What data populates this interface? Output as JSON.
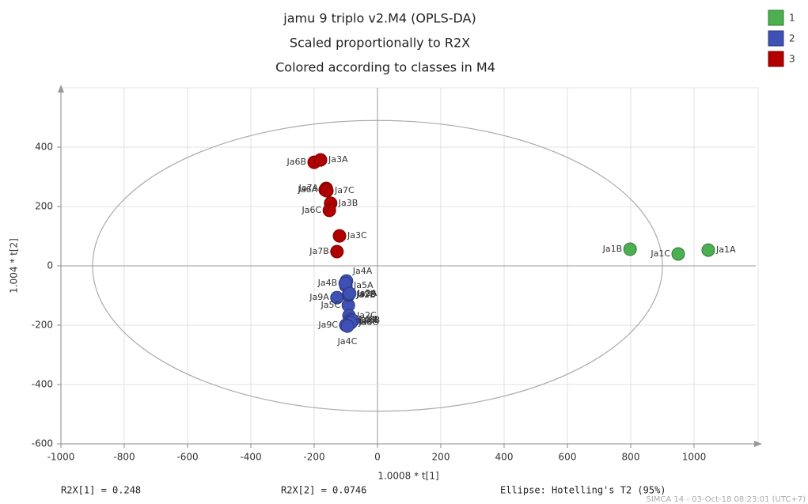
{
  "chart_data": {
    "type": "scatter",
    "title": [
      "jamu 9 triplo v2.M4 (OPLS-DA)",
      "Scaled proportionally to R2X",
      "Colored according to classes in M4"
    ],
    "x_label": "1.0008 * t[1]",
    "y_label": "1.004 * t[2]",
    "xlim": [
      -1000,
      1195
    ],
    "ylim": [
      -600,
      600
    ],
    "xticks": [
      -1000,
      -800,
      -600,
      -400,
      -200,
      0,
      200,
      400,
      600,
      800,
      1000
    ],
    "yticks": [
      -600,
      -400,
      -200,
      0,
      200,
      400
    ],
    "grid": true,
    "legend": "top-right",
    "ellipse": {
      "x_radius": 900,
      "y_radius": 490
    },
    "series": [
      {
        "name": "1",
        "color": "#4caf50",
        "labels": [
          "Ja1B",
          "Ja1C",
          "Ja1A"
        ],
        "x": [
          798,
          950,
          1045
        ],
        "values": [
          56,
          40,
          53
        ]
      },
      {
        "name": "2",
        "color": "#3f51b5",
        "labels": [
          "Ja4A",
          "Ja5A",
          "Ja4B",
          "Ja9A",
          "Ja5C",
          "Ja2B",
          "Ja9B",
          "Ja2A",
          "Ja2C",
          "Ja5B",
          "Ja8A",
          "Ja8B",
          "Ja8C",
          "Ja9C",
          "Ja4C"
        ],
        "x": [
          -98,
          -100,
          -102,
          -128,
          -92,
          -92,
          -90,
          -88,
          -90,
          -85,
          -82,
          -78,
          -84,
          -100,
          -95
        ],
        "values": [
          -51,
          -67,
          -59,
          -107,
          -133,
          -99,
          -96,
          -93,
          -168,
          -181,
          -186,
          -184,
          -192,
          -200,
          -203
        ]
      },
      {
        "name": "3",
        "color": "#b00000",
        "labels": [
          "Ja6B",
          "Ja3A",
          "Ja7A",
          "Ja6A",
          "Ja7C",
          "Ja3B",
          "Ja6C",
          "Ja3C",
          "Ja7B"
        ],
        "x": [
          -200,
          -180,
          -162,
          -165,
          -160,
          -148,
          -152,
          -120,
          -128
        ],
        "values": [
          349,
          357,
          261,
          256,
          253,
          211,
          187,
          101,
          48
        ]
      }
    ],
    "stats": [
      "R2X[1] = 0.248",
      "R2X[2] = 0.0746",
      "Ellipse: Hotelling's T2 (95%)"
    ],
    "footer": "SIMCA 14 - 03-Oct-18 08:23:01 (UTC+7)"
  }
}
